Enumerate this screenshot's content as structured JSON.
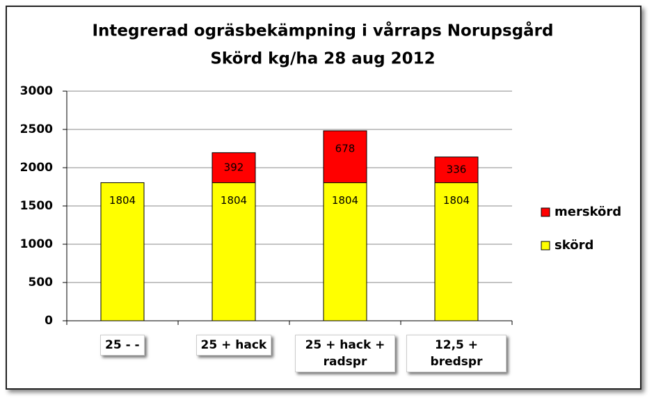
{
  "chart_data": {
    "type": "stacked_bar",
    "title": "Integrerad ogräsbekämpning  i vårraps Norupsgård",
    "subtitle": "Skörd kg/ha 28 aug 2012",
    "categories": [
      "25 -  -",
      "25 + hack",
      "25 + hack + radspr",
      "12,5 + bredspr"
    ],
    "series": [
      {
        "name": "skörd",
        "color": "#ffff00",
        "values": [
          1804,
          1804,
          1804,
          1804
        ]
      },
      {
        "name": "merskörd",
        "color": "#ff0000",
        "values": [
          null,
          392,
          678,
          336
        ]
      }
    ],
    "ylim": [
      0,
      3000
    ],
    "yticks": [
      0,
      500,
      1000,
      1500,
      2000,
      2500,
      3000
    ],
    "grid": true,
    "legend": "right"
  }
}
